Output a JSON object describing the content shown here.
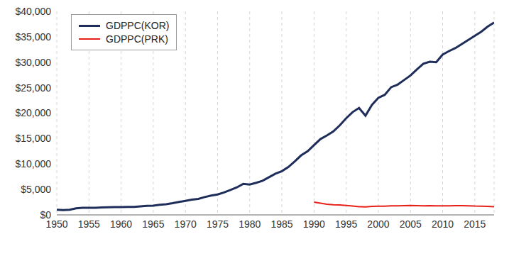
{
  "chart_data": {
    "type": "line",
    "x": [
      1950,
      1951,
      1952,
      1953,
      1954,
      1955,
      1956,
      1957,
      1958,
      1959,
      1960,
      1961,
      1962,
      1963,
      1964,
      1965,
      1966,
      1967,
      1968,
      1969,
      1970,
      1971,
      1972,
      1973,
      1974,
      1975,
      1976,
      1977,
      1978,
      1979,
      1980,
      1981,
      1982,
      1983,
      1984,
      1985,
      1986,
      1987,
      1988,
      1989,
      1990,
      1991,
      1992,
      1993,
      1994,
      1995,
      1996,
      1997,
      1998,
      1999,
      2000,
      2001,
      2002,
      2003,
      2004,
      2005,
      2006,
      2007,
      2008,
      2009,
      2010,
      2011,
      2012,
      2013,
      2014,
      2015,
      2016,
      2017,
      2018
    ],
    "series": [
      {
        "name": "GDPPC(KOR)",
        "color": "#1f2d5a",
        "values": [
          1000,
          950,
          1000,
          1300,
          1380,
          1400,
          1380,
          1450,
          1500,
          1520,
          1530,
          1560,
          1580,
          1680,
          1780,
          1820,
          1980,
          2100,
          2300,
          2550,
          2750,
          3000,
          3150,
          3500,
          3800,
          4000,
          4400,
          4900,
          5400,
          6100,
          5950,
          6300,
          6700,
          7400,
          8100,
          8600,
          9400,
          10500,
          11700,
          12500,
          13700,
          14900,
          15600,
          16400,
          17600,
          19000,
          20200,
          21000,
          19500,
          21600,
          23000,
          23600,
          25100,
          25600,
          26500,
          27400,
          28600,
          29700,
          30100,
          30000,
          31500,
          32200,
          32800,
          33600,
          34400,
          35200,
          36000,
          37000,
          37800
        ]
      },
      {
        "name": "GDPPC(PRK)",
        "color": "#e8201a",
        "values": [
          null,
          null,
          null,
          null,
          null,
          null,
          null,
          null,
          null,
          null,
          null,
          null,
          null,
          null,
          null,
          null,
          null,
          null,
          null,
          null,
          null,
          null,
          null,
          null,
          null,
          null,
          null,
          null,
          null,
          null,
          null,
          null,
          null,
          null,
          null,
          null,
          null,
          null,
          null,
          null,
          2500,
          2300,
          2100,
          2000,
          1950,
          1850,
          1750,
          1620,
          1580,
          1680,
          1700,
          1720,
          1760,
          1780,
          1800,
          1830,
          1810,
          1780,
          1820,
          1790,
          1760,
          1780,
          1800,
          1810,
          1790,
          1740,
          1720,
          1680,
          1600
        ]
      }
    ],
    "xlim": [
      1950,
      2018
    ],
    "xticks": [
      1950,
      1955,
      1960,
      1965,
      1970,
      1975,
      1980,
      1985,
      1990,
      1995,
      2000,
      2005,
      2010,
      2015
    ],
    "ylim": [
      0,
      40000
    ],
    "yticks": [
      {
        "value": 0,
        "label": "$0"
      },
      {
        "value": 5000,
        "label": "$5,000"
      },
      {
        "value": 10000,
        "label": "$10,000"
      },
      {
        "value": 15000,
        "label": "$15,000"
      },
      {
        "value": 20000,
        "label": "$20,000"
      },
      {
        "value": 25000,
        "label": "$25,000"
      },
      {
        "value": 30000,
        "label": "$30,000"
      },
      {
        "value": 35000,
        "label": "$35,000"
      },
      {
        "value": 40000,
        "label": "$40,000"
      }
    ],
    "grid": true,
    "legend": "upper left"
  }
}
